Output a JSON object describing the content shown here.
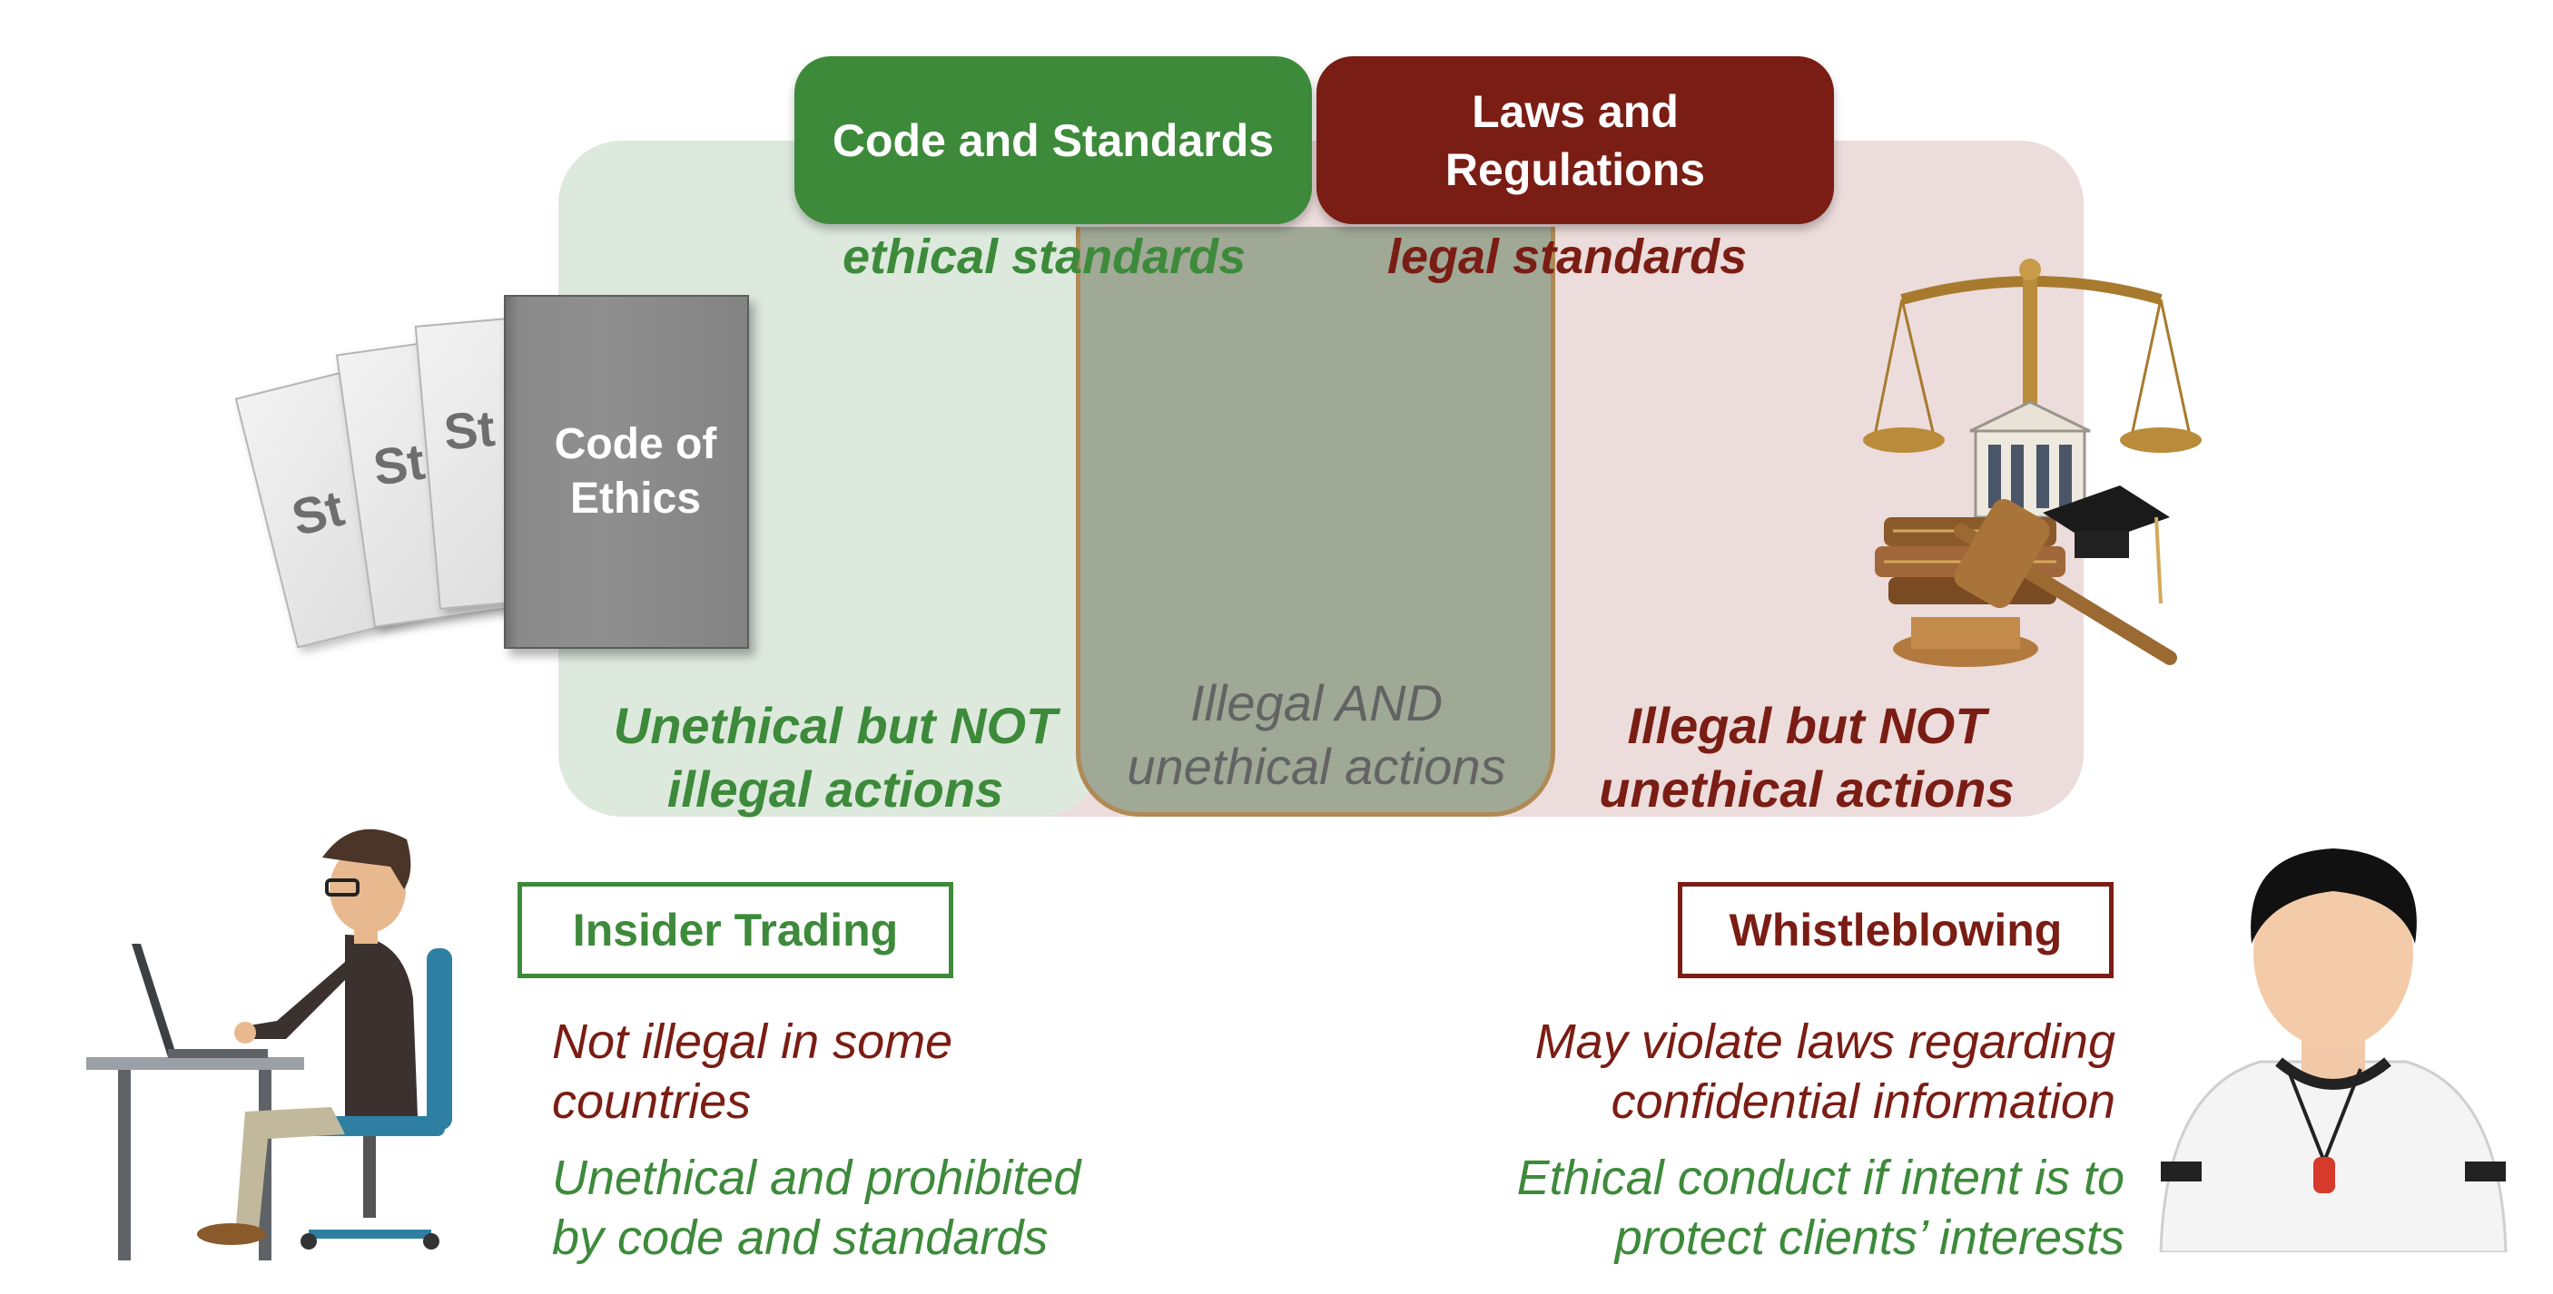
{
  "header": {
    "code_tab": "Code and Standards",
    "laws_tab_line1": "Laws and",
    "laws_tab_line2": "Regulations"
  },
  "standards": {
    "ethical": "ethical standards",
    "legal": "legal standards"
  },
  "regions": {
    "left_line1": "Unethical but NOT",
    "left_line2": "illegal actions",
    "middle_line1": "Illegal AND",
    "middle_line2": "unethical actions",
    "right_line1": "Illegal but NOT",
    "right_line2": "unethical actions"
  },
  "book": {
    "page_label": "St",
    "title_line1": "Code of",
    "title_line2": "Ethics"
  },
  "examples": {
    "left": {
      "title": "Insider Trading",
      "note1_line1": "Not illegal in some",
      "note1_line2": "countries",
      "note2_line1": "Unethical and prohibited",
      "note2_line2": "by code and standards"
    },
    "right": {
      "title": "Whistleblowing",
      "note1_line1": "May violate laws regarding",
      "note1_line2": "confidential information",
      "note2_line1": "Ethical conduct if intent is to",
      "note2_line2": "protect clients’ interests"
    }
  },
  "colors": {
    "green": "#3d8a3b",
    "red": "#7a1d14",
    "gray_text": "#636363"
  },
  "icons": [
    "code-of-ethics-book-icon",
    "justice-scales-icon",
    "person-at-laptop-icon",
    "whistleblower-icon"
  ]
}
